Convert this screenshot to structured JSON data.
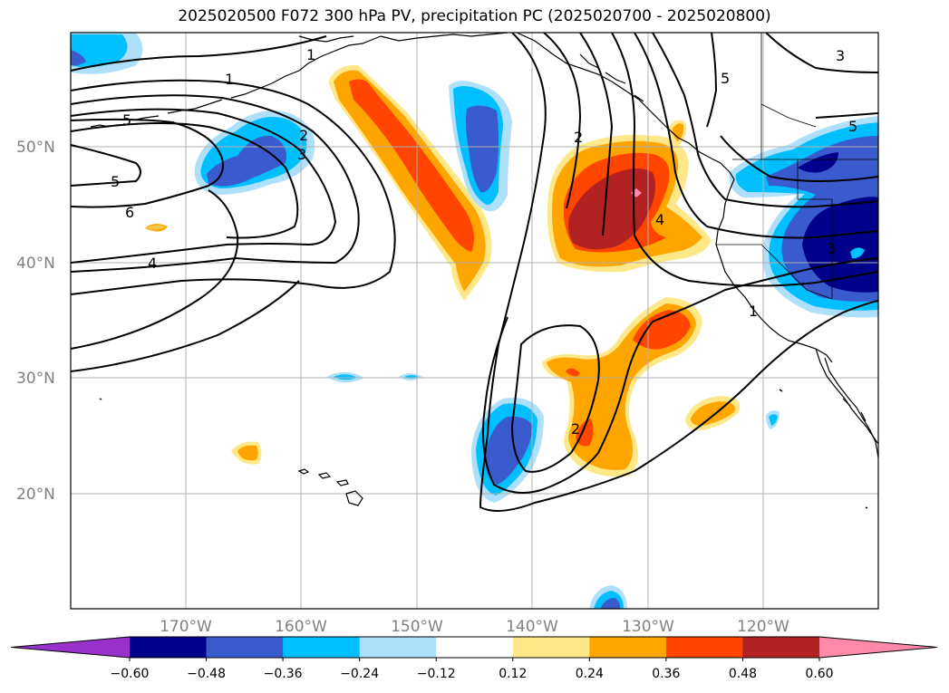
{
  "title": "2025020500 F072 300 hPa PV, precipitation PC (2025020700 - 2025020800)",
  "latitude_labels": [
    "50°N",
    "40°N",
    "30°N",
    "20°N"
  ],
  "longitude_labels": [
    "170°W",
    "160°W",
    "150°W",
    "140°W",
    "130°W",
    "120°W"
  ],
  "contour_labels": [
    "1",
    "2",
    "3",
    "5",
    "5",
    "6",
    "4",
    "2",
    "4",
    "1",
    "5",
    "5",
    "3",
    "2",
    "3"
  ],
  "colorbar": {
    "ticks": [
      "−0.60",
      "−0.48",
      "−0.36",
      "−0.24",
      "−0.12",
      "0.12",
      "0.24",
      "0.36",
      "0.48",
      "0.60"
    ],
    "colors": [
      "#9932cc",
      "#00008b",
      "#3a5bcd",
      "#00bfff",
      "#afe0fb",
      "#ffffff",
      "#ffe88a",
      "#ffa500",
      "#ff4500",
      "#b22222",
      "#ff89aa"
    ]
  },
  "colors": {
    "neg_060": "#00008b",
    "neg_048": "#3a5bcd",
    "neg_036": "#00bfff",
    "neg_024": "#afe0fb",
    "pos_024": "#ffe88a",
    "pos_036": "#ffa500",
    "pos_048": "#ff4500",
    "pos_060": "#b22222",
    "extreme_pos": "#ff89aa",
    "grid": "#b0b0b0",
    "contour": "#000000"
  }
}
